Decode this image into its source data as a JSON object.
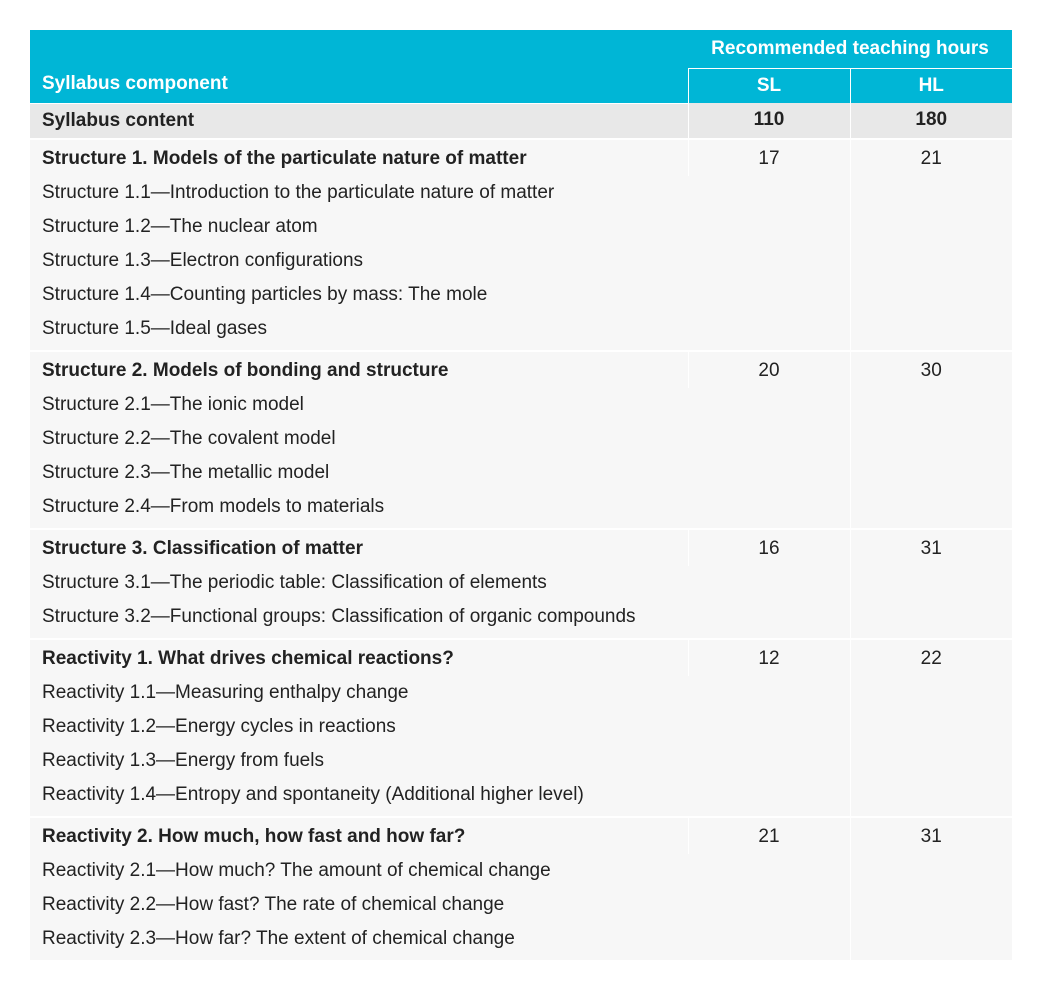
{
  "table": {
    "headers": {
      "component": "Syllabus component",
      "hours_group": "Recommended teaching hours",
      "sl": "SL",
      "hl": "HL"
    },
    "summary_row": {
      "label": "Syllabus content",
      "sl": "110",
      "hl": "180"
    },
    "sections": [
      {
        "title": "Structure 1. Models of the particulate nature of matter",
        "sl": "17",
        "hl": "21",
        "items": [
          "Structure 1.1—Introduction to the particulate nature of matter",
          "Structure 1.2—The nuclear atom",
          "Structure 1.3—Electron configurations",
          "Structure 1.4—Counting particles by mass: The mole",
          "Structure 1.5—Ideal gases"
        ]
      },
      {
        "title": "Structure 2. Models of bonding and structure",
        "sl": "20",
        "hl": "30",
        "items": [
          "Structure 2.1—The ionic model",
          "Structure 2.2—The covalent model",
          "Structure 2.3—The metallic model",
          "Structure 2.4—From models to materials"
        ]
      },
      {
        "title": "Structure 3. Classification of matter",
        "sl": "16",
        "hl": "31",
        "items": [
          "Structure 3.1—The periodic table: Classification of elements",
          "Structure 3.2—Functional groups: Classification of organic compounds"
        ]
      },
      {
        "title": "Reactivity 1. What drives chemical reactions?",
        "sl": "12",
        "hl": "22",
        "items": [
          "Reactivity 1.1—Measuring enthalpy change",
          "Reactivity 1.2—Energy cycles in reactions",
          "Reactivity 1.3—Energy from fuels",
          "Reactivity 1.4—Entropy and spontaneity (Additional higher level)"
        ]
      },
      {
        "title": "Reactivity 2. How much, how fast and how far?",
        "sl": "21",
        "hl": "31",
        "items": [
          "Reactivity 2.1—How much? The amount of chemical change",
          "Reactivity 2.2—How fast? The rate of chemical change",
          "Reactivity 2.3—How far? The extent of chemical change"
        ]
      }
    ],
    "colors": {
      "header_bg": "#00b6d6",
      "header_text": "#ffffff",
      "row_bg": "#f7f7f7",
      "highlight_bg": "#e8e8e8",
      "text": "#222222",
      "border": "#ffffff"
    },
    "layout": {
      "col_component_width": 658,
      "col_sl_width": 162,
      "col_hl_width": 162,
      "font_size": 19
    }
  }
}
